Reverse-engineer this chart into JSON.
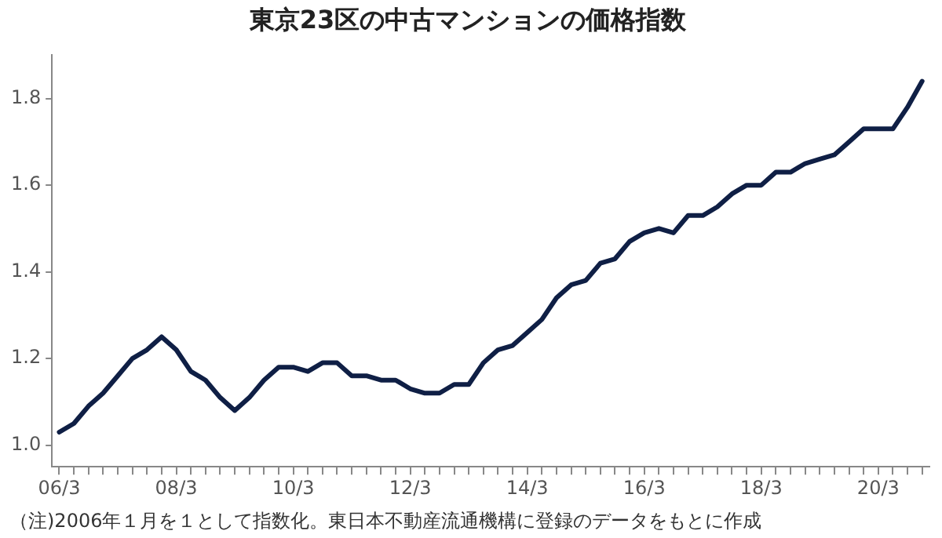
{
  "chart_data": {
    "type": "line",
    "title": "東京23区の中古マンションの価格指数",
    "categories": [
      "06/3",
      null,
      null,
      null,
      null,
      null,
      null,
      null,
      "08/3",
      null,
      null,
      null,
      null,
      null,
      null,
      null,
      "10/3",
      null,
      null,
      null,
      null,
      null,
      null,
      null,
      "12/3",
      null,
      null,
      null,
      null,
      null,
      null,
      null,
      "14/3",
      null,
      null,
      null,
      null,
      null,
      null,
      null,
      "16/3",
      null,
      null,
      null,
      null,
      null,
      null,
      null,
      "18/3",
      null,
      null,
      null,
      null,
      null,
      null,
      null,
      "20/3",
      null,
      null,
      null
    ],
    "series": [
      {
        "color": "#0f1f45",
        "values": [
          1.03,
          1.05,
          1.09,
          1.12,
          1.16,
          1.2,
          1.22,
          1.25,
          1.22,
          1.17,
          1.15,
          1.11,
          1.08,
          1.11,
          1.15,
          1.18,
          1.18,
          1.17,
          1.19,
          1.19,
          1.16,
          1.16,
          1.15,
          1.15,
          1.13,
          1.12,
          1.12,
          1.14,
          1.14,
          1.19,
          1.22,
          1.23,
          1.26,
          1.29,
          1.34,
          1.37,
          1.38,
          1.42,
          1.43,
          1.47,
          1.49,
          1.5,
          1.49,
          1.53,
          1.53,
          1.55,
          1.58,
          1.6,
          1.6,
          1.63,
          1.63,
          1.65,
          1.66,
          1.67,
          1.7,
          1.73,
          1.73,
          1.73,
          1.78,
          1.84
        ]
      }
    ],
    "ylim": [
      0.95,
      1.9
    ],
    "yticks": [
      {
        "value": 1,
        "label": "1.0"
      },
      {
        "value": 1.2,
        "label": "1.2"
      },
      {
        "value": 1.4,
        "label": "1.4"
      },
      {
        "value": 1.6,
        "label": "1.6"
      },
      {
        "value": 1.8,
        "label": "1.8"
      }
    ],
    "grid": false,
    "legend": false,
    "marker": "none",
    "line_style": "solid",
    "annotations": [
      "（注)2006年１月を１として指数化。東日本不動産流通機構に登録のデータをもとに作成"
    ]
  }
}
